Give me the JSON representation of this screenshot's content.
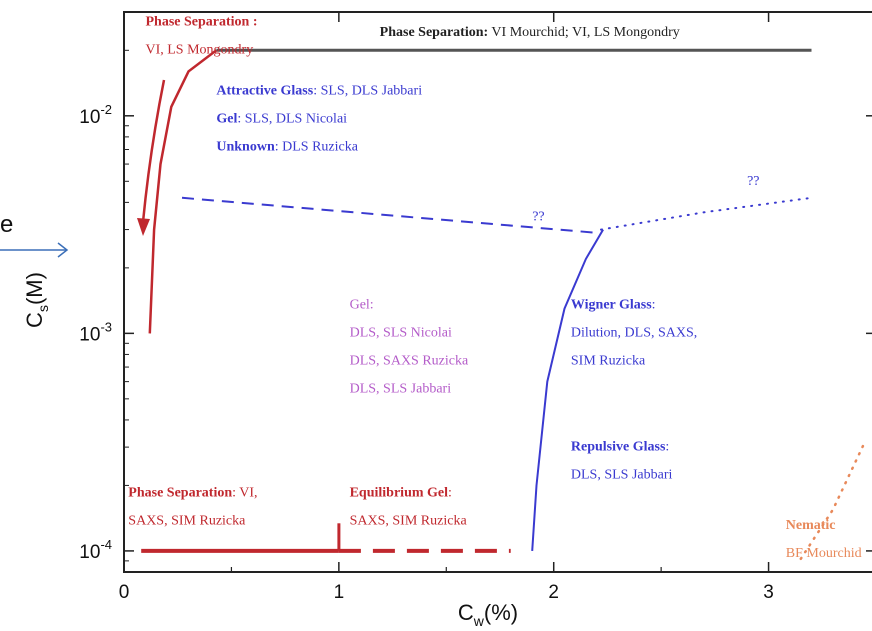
{
  "colors": {
    "phase": "#c0282e",
    "gray": "#555555",
    "blue": "#3a3ad0",
    "purple": "#b45cc9",
    "orange": "#e8895a",
    "frame": "#222222",
    "arrow": "#3b6fb8"
  },
  "side_fragment": "e",
  "chart_data": {
    "type": "line",
    "xlabel": "C",
    "xlabel_sub": "w",
    "xlabel_unit": "(%)",
    "ylabel": "C",
    "ylabel_sub": "s",
    "ylabel_unit": "(M)",
    "yscale": "log",
    "xlim": [
      0,
      3.5
    ],
    "ylim": [
      8e-05,
      0.03
    ],
    "x_ticks": [
      {
        "value": 0,
        "label": "0"
      },
      {
        "value": 1,
        "label": "1"
      },
      {
        "value": 2,
        "label": "2"
      },
      {
        "value": 3,
        "label": "3"
      }
    ],
    "y_ticks": [
      {
        "value": 0.0001,
        "base": "10",
        "exp": "-4"
      },
      {
        "value": 0.001,
        "base": "10",
        "exp": "-3"
      },
      {
        "value": 0.01,
        "base": "10",
        "exp": "-2"
      }
    ],
    "series": [
      {
        "id": "phase-separation-top",
        "color": "gray",
        "style": "solid",
        "width": 3,
        "x": [
          0.43,
          3.2
        ],
        "y": [
          0.02,
          0.02
        ]
      },
      {
        "id": "phase-separation-left-boundary",
        "color": "phase",
        "style": "solid",
        "width": 2.5,
        "x": [
          0.12,
          0.14,
          0.17,
          0.22,
          0.3,
          0.43
        ],
        "y": [
          0.001,
          0.003,
          0.006,
          0.011,
          0.016,
          0.02
        ]
      },
      {
        "id": "glass-transition-dashed",
        "color": "blue",
        "style": "dashed",
        "width": 2,
        "x": [
          0.27,
          2.2
        ],
        "y": [
          0.0042,
          0.0029
        ]
      },
      {
        "id": "glass-transition-dotted",
        "color": "blue",
        "style": "dotted",
        "width": 2,
        "x": [
          2.22,
          2.7,
          3.2
        ],
        "y": [
          0.003,
          0.0036,
          0.0042
        ]
      },
      {
        "id": "wigner-glass-boundary",
        "color": "blue",
        "style": "solid",
        "width": 2,
        "x": [
          1.9,
          1.92,
          1.97,
          2.05,
          2.15,
          2.23
        ],
        "y": [
          0.0001,
          0.0002,
          0.0006,
          0.0013,
          0.0022,
          0.003
        ]
      },
      {
        "id": "phase-separation-bottom-solid",
        "color": "phase",
        "style": "solid",
        "width": 4,
        "x": [
          0.08,
          1.0
        ],
        "y": [
          0.0001,
          0.0001
        ]
      },
      {
        "id": "equilibrium-gel-dashed",
        "color": "phase",
        "style": "dashed",
        "width": 4,
        "x": [
          1.0,
          1.8
        ],
        "y": [
          0.0001,
          0.0001
        ]
      },
      {
        "id": "phase-separation-tick",
        "color": "phase",
        "style": "solid",
        "width": 3,
        "x": [
          1.0,
          1.0
        ],
        "y": [
          0.0001,
          0.000134
        ]
      },
      {
        "id": "nematic-boundary-dotted",
        "color": "orange",
        "style": "dotted",
        "width": 2.5,
        "x": [
          3.15,
          3.3,
          3.45
        ],
        "y": [
          9.2e-05,
          0.000155,
          0.00032
        ]
      }
    ],
    "annotations": [
      {
        "lines": [
          {
            "parts": [
              {
                "text": "Phase Separation :",
                "bold": true
              }
            ]
          },
          {
            "parts": [
              {
                "text": "VI, LS Mongondry"
              }
            ]
          }
        ],
        "color": "phase",
        "x": 0.1,
        "y": 0.026
      },
      {
        "lines": [
          {
            "parts": [
              {
                "text": "Phase Separation:",
                "bold": true
              },
              {
                "text": "  VI Mourchid; VI, LS Mongondry"
              }
            ]
          }
        ],
        "color": "frame",
        "x": 1.19,
        "y": 0.0233
      },
      {
        "lines": [
          {
            "parts": [
              {
                "text": "Attractive Glass",
                "bold": true
              },
              {
                "text": ": SLS, DLS Jabbari"
              }
            ]
          },
          {
            "parts": [
              {
                "text": "Gel",
                "bold": true
              },
              {
                "text": ": SLS, DLS Nicolai"
              }
            ]
          },
          {
            "parts": [
              {
                "text": "Unknown",
                "bold": true
              },
              {
                "text": ": DLS  Ruzicka"
              }
            ]
          }
        ],
        "color": "blue",
        "x": 0.43,
        "y": 0.0125
      },
      {
        "lines": [
          {
            "parts": [
              {
                "text": "??"
              }
            ]
          }
        ],
        "color": "blue",
        "x": 1.9,
        "y": 0.0033
      },
      {
        "lines": [
          {
            "parts": [
              {
                "text": "??"
              }
            ]
          }
        ],
        "color": "blue",
        "x": 2.9,
        "y": 0.0048
      },
      {
        "lines": [
          {
            "parts": [
              {
                "text": "Gel:"
              }
            ]
          },
          {
            "parts": [
              {
                "text": "DLS, SLS Nicolai"
              }
            ]
          },
          {
            "parts": [
              {
                "text": "DLS, SAXS Ruzicka"
              }
            ]
          },
          {
            "parts": [
              {
                "text": "DLS, SLS Jabbari"
              }
            ]
          }
        ],
        "color": "purple",
        "x": 1.05,
        "y": 0.0013
      },
      {
        "lines": [
          {
            "parts": [
              {
                "text": "Wigner Glass",
                "bold": true
              },
              {
                "text": ":"
              }
            ]
          },
          {
            "parts": [
              {
                "text": "Dilution, DLS, SAXS,"
              }
            ]
          },
          {
            "parts": [
              {
                "text": "SIM Ruzicka"
              }
            ]
          }
        ],
        "color": "blue",
        "x": 2.08,
        "y": 0.0013
      },
      {
        "lines": [
          {
            "parts": [
              {
                "text": "Repulsive Glass",
                "bold": true
              },
              {
                "text": ":"
              }
            ]
          },
          {
            "parts": [
              {
                "text": "DLS, SLS Jabbari"
              }
            ]
          }
        ],
        "color": "blue",
        "x": 2.08,
        "y": 0.00029
      },
      {
        "lines": [
          {
            "parts": [
              {
                "text": "Phase Separation",
                "bold": true
              },
              {
                "text": ": VI,"
              }
            ]
          },
          {
            "parts": [
              {
                "text": "SAXS, SIM Ruzicka"
              }
            ]
          }
        ],
        "color": "phase",
        "x": 0.02,
        "y": 0.000178
      },
      {
        "lines": [
          {
            "parts": [
              {
                "text": "Equilibrium Gel",
                "bold": true
              },
              {
                "text": ":"
              }
            ]
          },
          {
            "parts": [
              {
                "text": "SAXS, SIM Ruzicka"
              }
            ]
          }
        ],
        "color": "phase",
        "x": 1.05,
        "y": 0.000178
      },
      {
        "lines": [
          {
            "parts": [
              {
                "text": "Nematic",
                "bold": true
              }
            ]
          },
          {
            "parts": [
              {
                "text": "BF Mourchid"
              }
            ]
          }
        ],
        "color": "orange",
        "x": 3.08,
        "y": 0.000126
      }
    ]
  }
}
